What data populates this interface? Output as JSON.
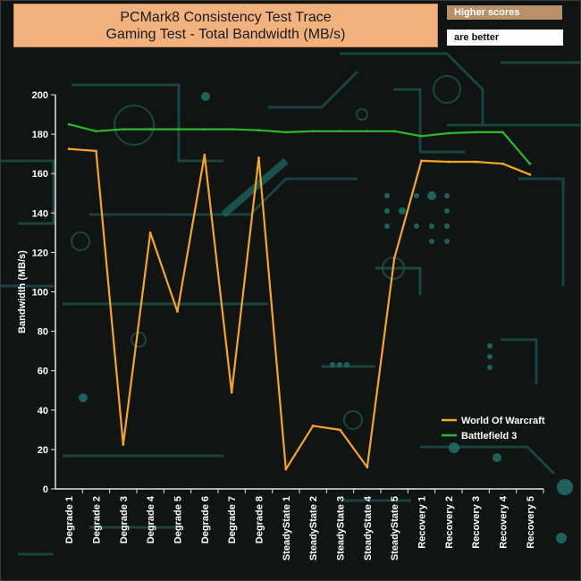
{
  "header": {
    "title_line1": "PCMark8 Consistency Test Trace",
    "title_line2": "Gaming Test - Total Bandwidth (MB/s)",
    "badge_top": "Higher scores",
    "badge_bottom": "are better"
  },
  "chart_data": {
    "type": "line",
    "title": "PCMark8 Consistency Test Trace Gaming Test - Total Bandwidth (MB/s)",
    "xlabel": "",
    "ylabel": "Bandwidth (MB/s)",
    "ylim": [
      0,
      200
    ],
    "yticks": [
      0,
      20,
      40,
      60,
      80,
      100,
      120,
      140,
      160,
      180,
      200
    ],
    "grid": false,
    "legend_position": "bottom-right",
    "categories": [
      "Degrade 1",
      "Degrade 2",
      "Degrade 3",
      "Degrade 4",
      "Degrade 5",
      "Degrade 6",
      "Degrade 7",
      "Degrade 8",
      "SteadyState 1",
      "SteadyState 2",
      "SteadyState 3",
      "SteadyState 4",
      "SteadyState 5",
      "Recovery 1",
      "Recovery 2",
      "Recovery 3",
      "Recovery 4",
      "Recovery 5"
    ],
    "series": [
      {
        "name": "World Of Warcraft",
        "color": "#f5a623",
        "values": [
          172.5,
          171.5,
          22.5,
          130,
          90,
          169.5,
          49,
          168,
          10,
          32,
          30,
          11,
          117,
          166.5,
          166,
          166,
          165,
          159.5
        ]
      },
      {
        "name": "Battlefield 3",
        "color": "#2db82d",
        "values": [
          185,
          181.5,
          182.5,
          182.5,
          182.5,
          182.5,
          182.5,
          182,
          181,
          181.5,
          181.5,
          181.5,
          181.5,
          179,
          180.5,
          181,
          181,
          165
        ]
      }
    ]
  }
}
